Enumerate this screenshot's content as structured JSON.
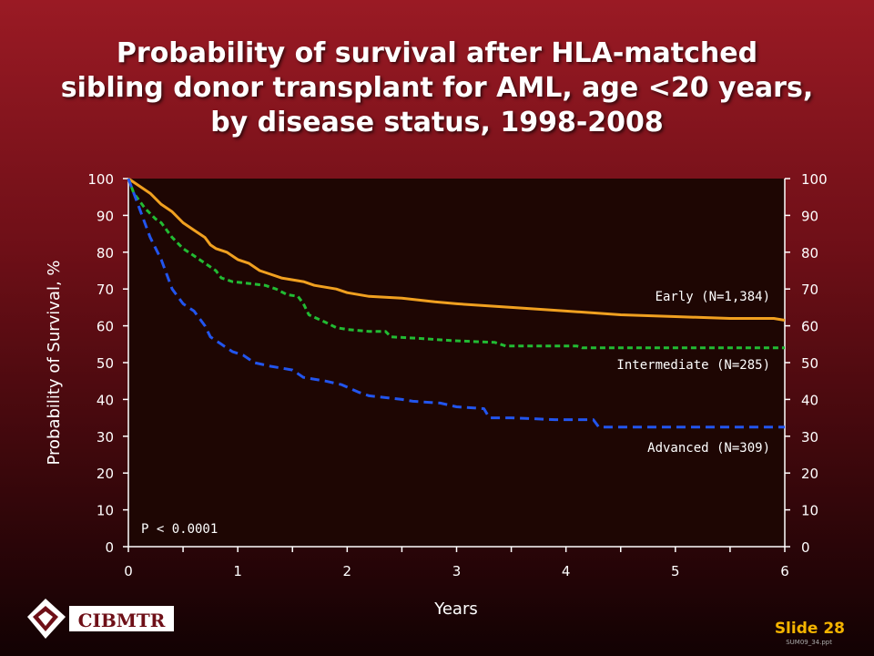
{
  "title_lines": [
    "Probability of survival after HLA-matched",
    "sibling donor transplant for AML, age <20 years,",
    "by disease status, 1998-2008"
  ],
  "colors": {
    "plot_background": "#1e0603",
    "early": "#f0a020",
    "intermediate": "#22bb33",
    "advanced": "#2255ee"
  },
  "chart_data": {
    "type": "line",
    "title": "Probability of survival after HLA-matched sibling donor transplant for AML, age <20 years, by disease status, 1998-2008",
    "xlabel": "Years",
    "ylabel": "Probability of Survival, %",
    "xlim": [
      0,
      6
    ],
    "ylim": [
      0,
      100
    ],
    "x_ticks": [
      "0",
      "1",
      "2",
      "3",
      "4",
      "5",
      "6"
    ],
    "y_ticks": [
      "0",
      "10",
      "20",
      "30",
      "40",
      "50",
      "60",
      "70",
      "80",
      "90",
      "100"
    ],
    "grid": false,
    "series": [
      {
        "name": "Early (N=1,384)",
        "style": "solid",
        "points": [
          [
            0,
            100
          ],
          [
            0.1,
            98
          ],
          [
            0.2,
            96
          ],
          [
            0.3,
            93
          ],
          [
            0.4,
            91
          ],
          [
            0.5,
            88
          ],
          [
            0.6,
            86
          ],
          [
            0.7,
            84
          ],
          [
            0.75,
            82
          ],
          [
            0.8,
            81
          ],
          [
            0.9,
            80
          ],
          [
            1.0,
            78
          ],
          [
            1.1,
            77
          ],
          [
            1.2,
            75
          ],
          [
            1.3,
            74
          ],
          [
            1.4,
            73
          ],
          [
            1.5,
            72.5
          ],
          [
            1.6,
            72
          ],
          [
            1.7,
            71
          ],
          [
            1.8,
            70.5
          ],
          [
            1.9,
            70
          ],
          [
            2.0,
            69
          ],
          [
            2.2,
            68
          ],
          [
            2.5,
            67.5
          ],
          [
            2.8,
            66.5
          ],
          [
            3.0,
            66
          ],
          [
            3.5,
            65
          ],
          [
            4.0,
            64
          ],
          [
            4.5,
            63
          ],
          [
            5.0,
            62.5
          ],
          [
            5.5,
            62
          ],
          [
            5.9,
            62
          ],
          [
            6.0,
            61.5
          ]
        ]
      },
      {
        "name": "Intermediate (N=285)",
        "style": "dashed",
        "points": [
          [
            0,
            100
          ],
          [
            0.05,
            96
          ],
          [
            0.15,
            92
          ],
          [
            0.25,
            89
          ],
          [
            0.3,
            88
          ],
          [
            0.4,
            84
          ],
          [
            0.5,
            81
          ],
          [
            0.6,
            79
          ],
          [
            0.7,
            77
          ],
          [
            0.8,
            75
          ],
          [
            0.85,
            73
          ],
          [
            0.95,
            72
          ],
          [
            1.1,
            71.5
          ],
          [
            1.25,
            71
          ],
          [
            1.35,
            70
          ],
          [
            1.45,
            68.5
          ],
          [
            1.55,
            68
          ],
          [
            1.6,
            66
          ],
          [
            1.65,
            63
          ],
          [
            1.8,
            61
          ],
          [
            1.9,
            59.5
          ],
          [
            2.0,
            59
          ],
          [
            2.2,
            58.5
          ],
          [
            2.35,
            58.5
          ],
          [
            2.4,
            57
          ],
          [
            2.7,
            56.5
          ],
          [
            2.95,
            56
          ],
          [
            3.35,
            55.5
          ],
          [
            3.45,
            54.5
          ],
          [
            4.1,
            54.5
          ],
          [
            4.15,
            54
          ],
          [
            6.0,
            54
          ]
        ]
      },
      {
        "name": "Advanced (N=309)",
        "style": "dashed",
        "points": [
          [
            0,
            100
          ],
          [
            0.05,
            96
          ],
          [
            0.1,
            92
          ],
          [
            0.15,
            88
          ],
          [
            0.2,
            84
          ],
          [
            0.3,
            78
          ],
          [
            0.35,
            74
          ],
          [
            0.4,
            70
          ],
          [
            0.45,
            68
          ],
          [
            0.5,
            66
          ],
          [
            0.6,
            64
          ],
          [
            0.7,
            60
          ],
          [
            0.75,
            57
          ],
          [
            0.85,
            55
          ],
          [
            0.95,
            53
          ],
          [
            1.05,
            52
          ],
          [
            1.15,
            50
          ],
          [
            1.3,
            49
          ],
          [
            1.5,
            48
          ],
          [
            1.6,
            46
          ],
          [
            1.8,
            45
          ],
          [
            1.95,
            44
          ],
          [
            2.1,
            42
          ],
          [
            2.2,
            41
          ],
          [
            2.5,
            40
          ],
          [
            2.6,
            39.5
          ],
          [
            2.85,
            39
          ],
          [
            3.0,
            38
          ],
          [
            3.25,
            37.5
          ],
          [
            3.3,
            35
          ],
          [
            3.5,
            35
          ],
          [
            3.9,
            34.5
          ],
          [
            4.25,
            34.5
          ],
          [
            4.3,
            32.5
          ],
          [
            4.5,
            32.5
          ],
          [
            6.0,
            32.5
          ]
        ]
      }
    ],
    "annotations": {
      "p_value": "P < 0.0001"
    }
  },
  "footer": {
    "logo_text": "CIBMTR",
    "slide_number": "Slide 28",
    "file_ref": "SUM09_34.ppt"
  }
}
